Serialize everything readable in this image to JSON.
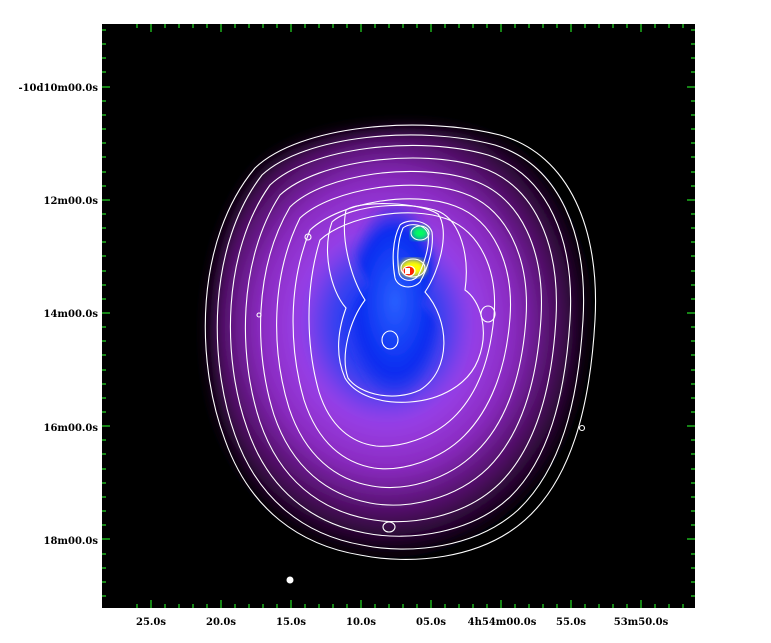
{
  "image": {
    "description_free": true,
    "colormap": [
      "#000000",
      "#5a1066",
      "#b040d8",
      "#c070f0",
      "#2050ff",
      "#0020e0",
      "#00ff40",
      "#ffff00",
      "#ff2000",
      "#ffffff"
    ],
    "contour_color": "#ffffff",
    "tick_color": "#22cc22",
    "frame_background": "#000000"
  },
  "axes": {
    "y_tick_labels": [
      "-10d10m00.0s",
      "12m00.0s",
      "14m00.0s",
      "16m00.0s",
      "18m00.0s"
    ],
    "x_tick_labels": [
      "25.0s",
      "20.0s",
      "15.0s",
      "10.0s",
      "05.0s",
      "4h54m00.0s",
      "55.0s",
      "53m50.0s"
    ]
  }
}
